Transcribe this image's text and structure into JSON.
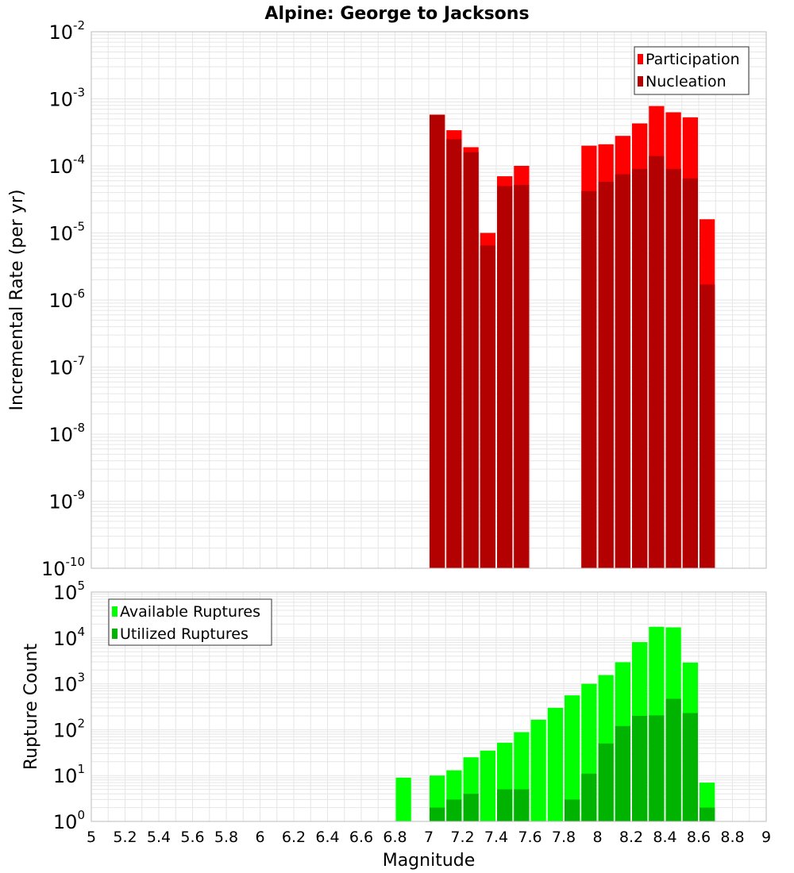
{
  "title": "Alpine: George to Jacksons",
  "xlabel": "Magnitude",
  "colors": {
    "participation": "#ff0000",
    "nucleation": "#b30000",
    "available": "#00ff00",
    "utilized": "#00b300",
    "grid": "#e6e6e6",
    "axis": "#bbbbbb"
  },
  "chart_data": [
    {
      "type": "bar",
      "scale": "log",
      "ylabel": "Incremental Rate (per yr)",
      "ylim": [
        1e-10,
        0.01
      ],
      "xlim": [
        5,
        9
      ],
      "bin_width": 0.1,
      "grid": true,
      "legend_position": "top-right",
      "series": [
        {
          "name": "Participation",
          "x": [
            7.05,
            7.15,
            7.25,
            7.35,
            7.45,
            7.55,
            7.95,
            8.05,
            8.15,
            8.25,
            8.35,
            8.45,
            8.55,
            8.65
          ],
          "values": [
            0.00058,
            0.00034,
            0.00019,
            1e-05,
            7e-05,
            0.0001,
            0.0002,
            0.00021,
            0.00028,
            0.00043,
            0.00078,
            0.00063,
            0.00053,
            1.6e-05
          ]
        },
        {
          "name": "Nucleation",
          "x": [
            7.05,
            7.15,
            7.25,
            7.35,
            7.45,
            7.55,
            7.95,
            8.05,
            8.15,
            8.25,
            8.35,
            8.45,
            8.55,
            8.65
          ],
          "values": [
            0.00058,
            0.00025,
            0.00016,
            6.5e-06,
            5e-05,
            5.2e-05,
            4.2e-05,
            5.8e-05,
            7.5e-05,
            9e-05,
            0.00014,
            9e-05,
            6.5e-05,
            1.7e-06
          ]
        }
      ]
    },
    {
      "type": "bar",
      "scale": "log",
      "ylabel": "Rupture Count",
      "ylim": [
        1,
        100000
      ],
      "xlim": [
        5,
        9
      ],
      "bin_width": 0.1,
      "grid": true,
      "legend_position": "top-left",
      "xticks": [
        "5",
        "5.2",
        "5.4",
        "5.6",
        "5.8",
        "6",
        "6.2",
        "6.4",
        "6.6",
        "6.8",
        "7",
        "7.2",
        "7.4",
        "7.6",
        "7.8",
        "8",
        "8.2",
        "8.4",
        "8.6",
        "8.8",
        "9"
      ],
      "series": [
        {
          "name": "Available Ruptures",
          "x": [
            6.85,
            7.05,
            7.15,
            7.25,
            7.35,
            7.45,
            7.55,
            7.65,
            7.75,
            7.85,
            7.95,
            8.05,
            8.15,
            8.25,
            8.35,
            8.45,
            8.55,
            8.65
          ],
          "values": [
            9,
            10,
            13,
            25,
            35,
            52,
            88,
            165,
            300,
            560,
            1000,
            1550,
            2950,
            8100,
            17500,
            17000,
            2900,
            7
          ]
        },
        {
          "name": "Utilized Ruptures",
          "x": [
            7.05,
            7.15,
            7.25,
            7.35,
            7.45,
            7.55,
            7.65,
            7.85,
            7.95,
            8.05,
            8.15,
            8.25,
            8.35,
            8.45,
            8.55,
            8.65
          ],
          "values": [
            2,
            3,
            4,
            1,
            5,
            5,
            1,
            3,
            11,
            50,
            120,
            200,
            205,
            470,
            230,
            2
          ]
        }
      ]
    }
  ]
}
